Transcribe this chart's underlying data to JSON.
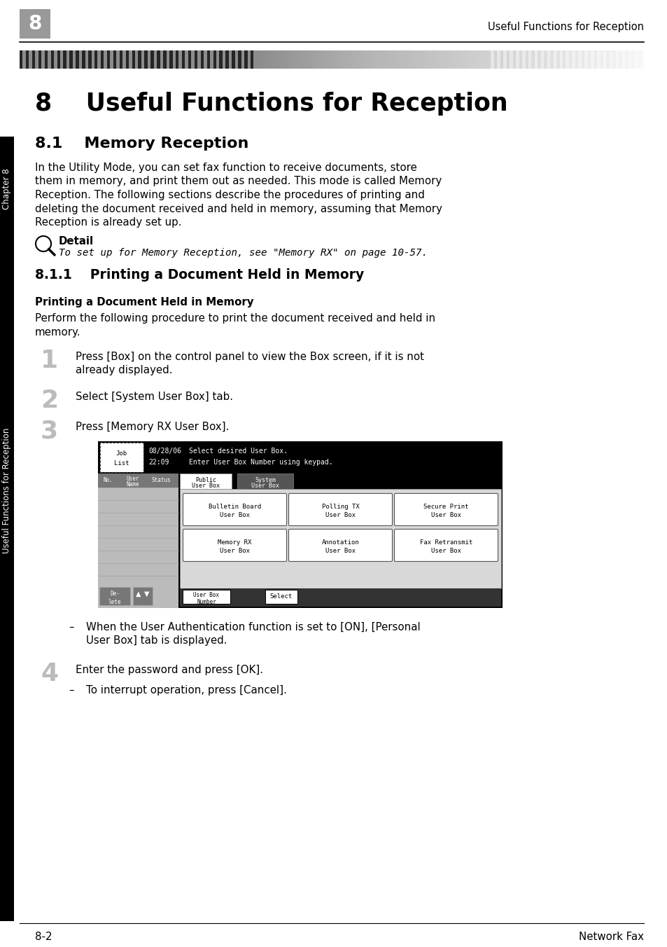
{
  "page_bg": "#ffffff",
  "header_text_right": "Useful Functions for Reception",
  "header_number": "8",
  "chapter_label": "Chapter 8",
  "sidebar_label": "Useful Functions for Reception",
  "main_title": "8    Useful Functions for Reception",
  "section_title": "8.1    Memory Reception",
  "section_body_lines": [
    "In the Utility Mode, you can set fax function to receive documents, store",
    "them in memory, and print them out as needed. This mode is called Memory",
    "Reception. The following sections describe the procedures of printing and",
    "deleting the document received and held in memory, assuming that Memory",
    "Reception is already set up."
  ],
  "detail_label": "Detail",
  "detail_body": "To set up for Memory Reception, see \"Memory RX\" on page 10-57.",
  "subsection_title": "8.1.1    Printing a Document Held in Memory",
  "subsection_bold": "Printing a Document Held in Memory",
  "subsection_body_lines": [
    "Perform the following procedure to print the document received and held in",
    "memory."
  ],
  "step1_num": "1",
  "step1_lines": [
    "Press [Box] on the control panel to view the Box screen, if it is not",
    "already displayed."
  ],
  "step2_num": "2",
  "step2_text": "Select [System User Box] tab.",
  "step3_num": "3",
  "step3_text": "Press [Memory RX User Box].",
  "note_lines": [
    "When the User Authentication function is set to [ON], [Personal",
    "User Box] tab is displayed."
  ],
  "step4_num": "4",
  "step4_text": "Enter the password and press [OK].",
  "step4_note": "To interrupt operation, press [Cancel].",
  "footer_left": "8-2",
  "footer_right": "Network Fax"
}
